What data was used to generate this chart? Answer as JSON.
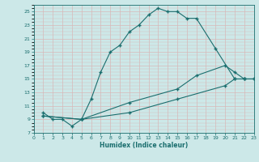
{
  "xlabel": "Humidex (Indice chaleur)",
  "bg_color": "#cce8e8",
  "grid_color_major": "#e8c8c8",
  "grid_color_minor": "#ffffff",
  "line_color": "#1a6e6e",
  "line1_x": [
    1,
    2,
    3,
    4,
    5,
    6,
    7,
    8,
    9,
    10,
    11,
    12,
    13,
    14,
    15,
    16,
    17,
    19,
    21,
    22,
    23
  ],
  "line1_y": [
    10,
    9,
    9,
    8,
    9,
    12,
    16,
    19,
    20,
    22,
    23,
    24.5,
    25.5,
    25,
    25,
    24,
    24,
    19.5,
    15,
    15,
    15
  ],
  "line2_x": [
    1,
    5,
    10,
    15,
    20,
    21,
    22,
    23
  ],
  "line2_y": [
    9.5,
    9,
    10,
    12,
    14,
    15,
    15,
    15
  ],
  "line3_x": [
    1,
    5,
    10,
    15,
    17,
    20,
    21,
    22,
    23
  ],
  "line3_y": [
    9.5,
    9,
    11.5,
    13.5,
    15.5,
    17,
    16,
    15,
    15
  ],
  "xlim": [
    0,
    23
  ],
  "ylim": [
    7,
    26
  ],
  "yticks": [
    7,
    9,
    11,
    13,
    15,
    17,
    19,
    21,
    23,
    25
  ],
  "xticks": [
    0,
    1,
    2,
    3,
    4,
    5,
    6,
    7,
    8,
    9,
    10,
    11,
    12,
    13,
    14,
    15,
    16,
    17,
    18,
    19,
    20,
    21,
    22,
    23
  ]
}
